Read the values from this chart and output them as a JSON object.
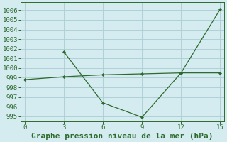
{
  "line1_x": [
    0,
    3,
    6,
    9,
    12,
    15
  ],
  "line1_y": [
    998.8,
    999.1,
    999.3,
    999.4,
    999.5,
    999.5
  ],
  "line2_x": [
    3,
    6,
    9,
    12,
    15
  ],
  "line2_y": [
    1001.7,
    996.4,
    994.9,
    999.5,
    1006.1
  ],
  "line_color": "#2d6a2d",
  "marker_color": "#2d6a2d",
  "bg_color": "#d4ecf0",
  "grid_color": "#b0d0d8",
  "xlabel": "Graphe pression niveau de la mer (hPa)",
  "xlabel_color": "#2d6a2d",
  "xlabel_fontsize": 8,
  "tick_color": "#2d6a2d",
  "tick_fontsize": 6.5,
  "ylim": [
    994.5,
    1006.8
  ],
  "xlim": [
    -0.3,
    15.3
  ],
  "yticks": [
    995,
    996,
    997,
    998,
    999,
    1000,
    1001,
    1002,
    1003,
    1004,
    1005,
    1006
  ],
  "xticks": [
    0,
    3,
    6,
    9,
    12,
    15
  ]
}
